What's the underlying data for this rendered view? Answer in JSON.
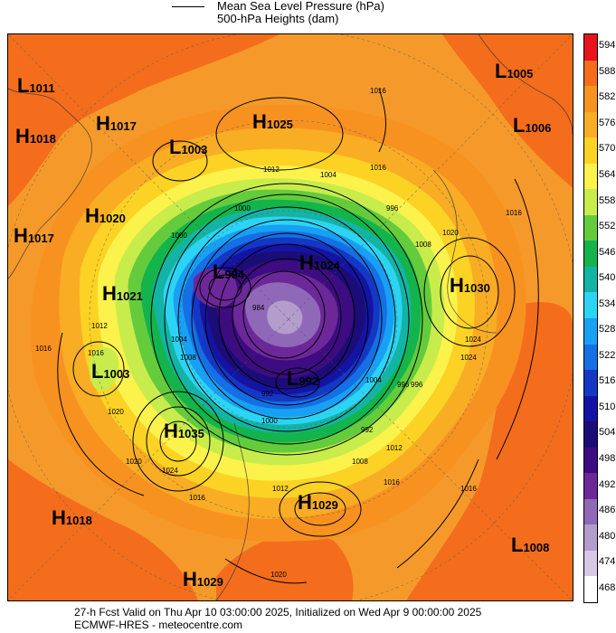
{
  "legend": {
    "line_label": "Mean Sea Level Pressure (hPa)",
    "shade_label": "500-hPa Heights (dam)"
  },
  "colorbar": {
    "levels": [
      "594",
      "588",
      "582",
      "576",
      "570",
      "564",
      "558",
      "552",
      "546",
      "540",
      "534",
      "528",
      "522",
      "516",
      "510",
      "504",
      "498",
      "492",
      "486",
      "480",
      "474",
      "468"
    ],
    "colors": [
      "#e8141c",
      "#f46d1c",
      "#f79220",
      "#f8ad24",
      "#fcd324",
      "#fcf24c",
      "#c8ec4c",
      "#64cc3c",
      "#14b44c",
      "#14b4a4",
      "#2cd4f4",
      "#18a0f4",
      "#1470e4",
      "#1438c4",
      "#1414a4",
      "#1c0c78",
      "#3c0c80",
      "#6c2898",
      "#9068b8",
      "#b49ccc",
      "#d8c8e4",
      "#ffffff"
    ]
  },
  "centers": [
    {
      "type": "L",
      "value": "1011"
    },
    {
      "type": "H",
      "value": "1017"
    },
    {
      "type": "H",
      "value": "1018"
    },
    {
      "type": "L",
      "value": "1003"
    },
    {
      "type": "H",
      "value": "1025"
    },
    {
      "type": "L",
      "value": "1005"
    },
    {
      "type": "L",
      "value": "1006"
    },
    {
      "type": "H",
      "value": "1020"
    },
    {
      "type": "H",
      "value": "1017"
    },
    {
      "type": "L",
      "value": "994"
    },
    {
      "type": "H",
      "value": "1024"
    },
    {
      "type": "H",
      "value": "1021"
    },
    {
      "type": "H",
      "value": "1030"
    },
    {
      "type": "L",
      "value": "1003"
    },
    {
      "type": "L",
      "value": "992"
    },
    {
      "type": "H",
      "value": "1035"
    },
    {
      "type": "H",
      "value": "1029"
    },
    {
      "type": "H",
      "value": "1018"
    },
    {
      "type": "L",
      "value": "1008"
    },
    {
      "type": "H",
      "value": "1029"
    }
  ],
  "isobar_labels": [
    "1016",
    "1016",
    "1012",
    "1016",
    "1004",
    "1000",
    "996",
    "1008",
    "1000",
    "1020",
    "1012",
    "1016",
    "992",
    "1004",
    "1000",
    "1008",
    "1012",
    "1016",
    "1024",
    "1012",
    "1020",
    "1024",
    "1016",
    "1016",
    "1016",
    "1020",
    "1004",
    "996",
    "984",
    "992",
    "996",
    "1020",
    "1024",
    "1008"
  ],
  "footer": {
    "line1": "27-h Fcst Valid on Thu Apr 10 03:00:00 2025, Initialized on Wed Apr  9 00:00:00 2025",
    "line2": "ECMWF-HRES  - meteocentre.com"
  }
}
